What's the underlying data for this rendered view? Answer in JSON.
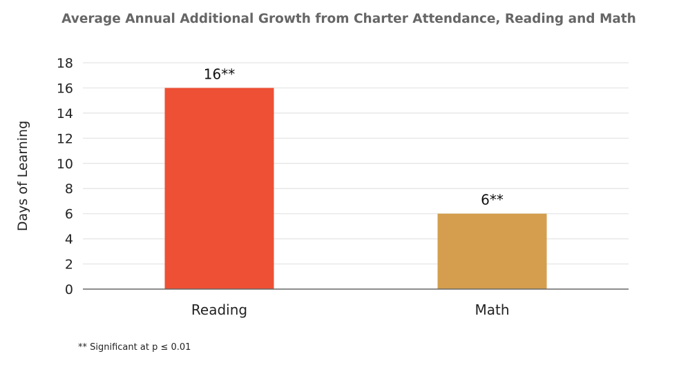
{
  "chart_data": {
    "type": "bar",
    "title": "Average Annual Additional Growth from Charter Attendance, Reading and Math",
    "xlabel": "",
    "ylabel": "Days of Learning",
    "categories": [
      "Reading",
      "Math"
    ],
    "values": [
      16,
      6
    ],
    "data_labels": [
      "16**",
      "6**"
    ],
    "colors": [
      "#ee5035",
      "#d49e4e"
    ],
    "ylim": [
      0,
      18
    ],
    "yticks": [
      0,
      2,
      4,
      6,
      8,
      10,
      12,
      14,
      16,
      18
    ],
    "grid": true,
    "footnote": "** Significant at p ≤ 0.01"
  }
}
